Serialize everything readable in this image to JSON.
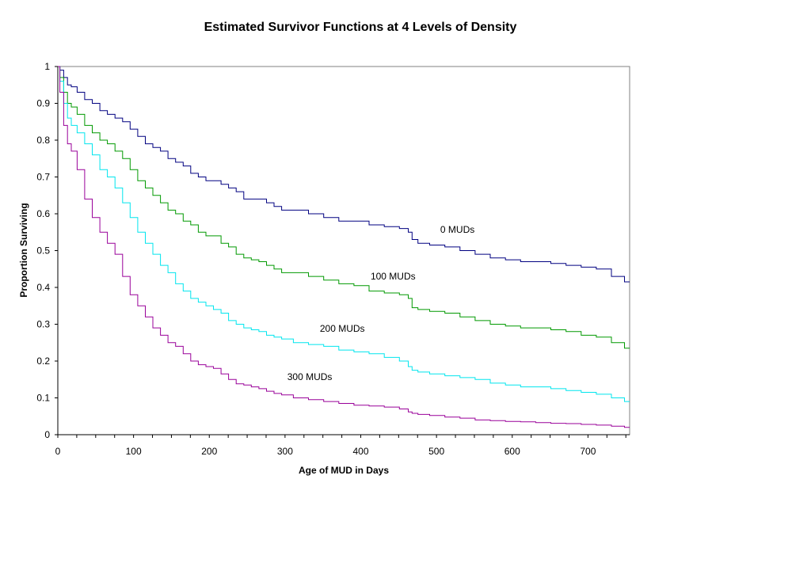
{
  "chart_data": {
    "type": "line",
    "title": "Estimated Survivor Functions at 4 Levels of Density",
    "xlabel": "Age of MUD in Days",
    "ylabel": "Proportion Surviving",
    "xlim": [
      0,
      755
    ],
    "ylim": [
      0,
      1
    ],
    "xticks": [
      0,
      100,
      200,
      300,
      400,
      500,
      600,
      700
    ],
    "yticks": [
      0,
      0.1,
      0.2,
      0.3,
      0.4,
      0.5,
      0.6,
      0.7,
      0.8,
      0.9,
      1
    ],
    "grid": false,
    "legend": "none",
    "series": [
      {
        "name": "0 MUDs",
        "color": "#000080",
        "x": [
          0,
          5,
          10,
          15,
          20,
          30,
          40,
          50,
          60,
          70,
          80,
          90,
          100,
          110,
          120,
          130,
          140,
          150,
          160,
          170,
          180,
          190,
          200,
          210,
          220,
          230,
          240,
          250,
          260,
          270,
          280,
          290,
          300,
          320,
          340,
          360,
          380,
          400,
          420,
          440,
          460,
          465,
          470,
          480,
          500,
          520,
          540,
          560,
          580,
          600,
          620,
          640,
          660,
          680,
          700,
          720,
          740,
          755
        ],
        "y": [
          1.0,
          0.99,
          0.97,
          0.95,
          0.945,
          0.93,
          0.91,
          0.9,
          0.88,
          0.87,
          0.86,
          0.85,
          0.83,
          0.81,
          0.79,
          0.78,
          0.77,
          0.75,
          0.74,
          0.73,
          0.71,
          0.7,
          0.69,
          0.69,
          0.68,
          0.67,
          0.66,
          0.64,
          0.64,
          0.64,
          0.63,
          0.62,
          0.61,
          0.61,
          0.6,
          0.59,
          0.58,
          0.58,
          0.57,
          0.565,
          0.56,
          0.55,
          0.53,
          0.52,
          0.515,
          0.51,
          0.5,
          0.49,
          0.48,
          0.475,
          0.47,
          0.47,
          0.465,
          0.46,
          0.455,
          0.45,
          0.43,
          0.415
        ]
      },
      {
        "name": "100 MUDs",
        "color": "#009900",
        "x": [
          0,
          5,
          10,
          15,
          20,
          30,
          40,
          50,
          60,
          70,
          80,
          90,
          100,
          110,
          120,
          130,
          140,
          150,
          160,
          170,
          180,
          190,
          200,
          210,
          220,
          230,
          240,
          250,
          260,
          270,
          280,
          290,
          300,
          320,
          340,
          360,
          380,
          400,
          420,
          440,
          460,
          465,
          470,
          480,
          500,
          520,
          540,
          560,
          580,
          600,
          620,
          640,
          660,
          680,
          700,
          720,
          740,
          755
        ],
        "y": [
          1.0,
          0.97,
          0.93,
          0.9,
          0.89,
          0.87,
          0.84,
          0.82,
          0.8,
          0.79,
          0.77,
          0.75,
          0.72,
          0.69,
          0.67,
          0.65,
          0.63,
          0.61,
          0.6,
          0.58,
          0.57,
          0.55,
          0.54,
          0.54,
          0.52,
          0.51,
          0.49,
          0.48,
          0.475,
          0.47,
          0.46,
          0.45,
          0.44,
          0.44,
          0.43,
          0.42,
          0.41,
          0.405,
          0.39,
          0.385,
          0.38,
          0.37,
          0.345,
          0.34,
          0.335,
          0.33,
          0.32,
          0.31,
          0.3,
          0.295,
          0.29,
          0.29,
          0.285,
          0.28,
          0.27,
          0.265,
          0.25,
          0.235
        ]
      },
      {
        "name": "200 MUDs",
        "color": "#00E5EE",
        "x": [
          0,
          5,
          10,
          15,
          20,
          30,
          40,
          50,
          60,
          70,
          80,
          90,
          100,
          110,
          120,
          130,
          140,
          150,
          160,
          170,
          180,
          190,
          200,
          210,
          220,
          230,
          240,
          250,
          260,
          270,
          280,
          290,
          300,
          320,
          340,
          360,
          380,
          400,
          420,
          440,
          460,
          465,
          470,
          480,
          500,
          520,
          540,
          560,
          580,
          600,
          620,
          640,
          660,
          680,
          700,
          720,
          740,
          755
        ],
        "y": [
          1.0,
          0.96,
          0.9,
          0.86,
          0.84,
          0.82,
          0.79,
          0.76,
          0.72,
          0.7,
          0.67,
          0.63,
          0.59,
          0.55,
          0.52,
          0.49,
          0.46,
          0.44,
          0.41,
          0.39,
          0.37,
          0.36,
          0.35,
          0.34,
          0.33,
          0.31,
          0.3,
          0.29,
          0.285,
          0.28,
          0.27,
          0.265,
          0.26,
          0.25,
          0.245,
          0.24,
          0.23,
          0.225,
          0.22,
          0.21,
          0.2,
          0.185,
          0.175,
          0.17,
          0.165,
          0.16,
          0.155,
          0.15,
          0.14,
          0.135,
          0.13,
          0.13,
          0.125,
          0.12,
          0.115,
          0.11,
          0.1,
          0.09
        ]
      },
      {
        "name": "300 MUDs",
        "color": "#990099",
        "x": [
          0,
          5,
          10,
          15,
          20,
          30,
          40,
          50,
          60,
          70,
          80,
          90,
          100,
          110,
          120,
          130,
          140,
          150,
          160,
          170,
          180,
          190,
          200,
          210,
          220,
          230,
          240,
          250,
          260,
          270,
          280,
          290,
          300,
          320,
          340,
          360,
          380,
          400,
          420,
          440,
          460,
          465,
          470,
          480,
          500,
          520,
          540,
          560,
          580,
          600,
          620,
          640,
          660,
          680,
          700,
          720,
          740,
          755
        ],
        "y": [
          1.0,
          0.93,
          0.84,
          0.79,
          0.77,
          0.72,
          0.64,
          0.59,
          0.55,
          0.52,
          0.49,
          0.43,
          0.38,
          0.35,
          0.32,
          0.29,
          0.27,
          0.25,
          0.24,
          0.22,
          0.2,
          0.19,
          0.185,
          0.18,
          0.165,
          0.15,
          0.138,
          0.135,
          0.13,
          0.125,
          0.118,
          0.112,
          0.108,
          0.1,
          0.095,
          0.09,
          0.085,
          0.08,
          0.078,
          0.075,
          0.07,
          0.062,
          0.058,
          0.055,
          0.052,
          0.048,
          0.045,
          0.04,
          0.038,
          0.036,
          0.035,
          0.033,
          0.031,
          0.03,
          0.028,
          0.026,
          0.023,
          0.02
        ]
      }
    ],
    "annotations": [
      {
        "text": "0 MUDs",
        "x": 505,
        "y": 0.548
      },
      {
        "text": "100 MUDs",
        "x": 413,
        "y": 0.422
      },
      {
        "text": "200 MUDs",
        "x": 346,
        "y": 0.28
      },
      {
        "text": "300 MUDs",
        "x": 303,
        "y": 0.148
      }
    ]
  }
}
